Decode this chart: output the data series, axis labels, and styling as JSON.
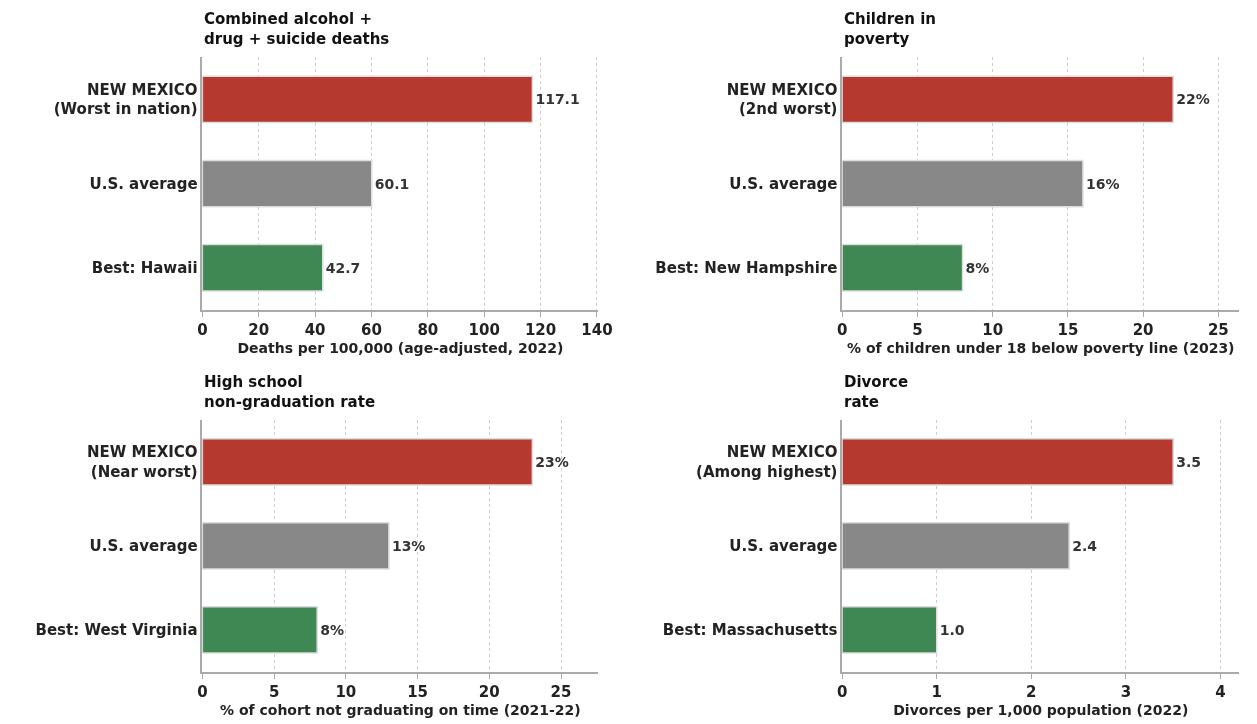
{
  "chart_data": [
    {
      "type": "bar",
      "orientation": "horizontal",
      "title": "Combined alcohol +\ndrug + suicide deaths",
      "xlabel": "Deaths per 100,000 (age-adjusted, 2022)",
      "categories": [
        "NEW MEXICO\n(Worst in nation)",
        "U.S. average",
        "Best: Hawaii"
      ],
      "values": [
        117.1,
        60.1,
        42.7
      ],
      "value_labels": [
        "117.1",
        "60.1",
        "42.7"
      ],
      "colors": [
        "#b5392f",
        "#888888",
        "#3f8753"
      ],
      "xlim": [
        0,
        140.5
      ],
      "xticks": [
        0,
        20,
        40,
        60,
        80,
        100,
        120,
        140
      ],
      "grid": "x"
    },
    {
      "type": "bar",
      "orientation": "horizontal",
      "title": "Children in\npoverty",
      "xlabel": "% of children under 18 below poverty line (2023)",
      "categories": [
        "NEW MEXICO\n(2nd worst)",
        "U.S. average",
        "Best: New Hampshire"
      ],
      "values": [
        22,
        16,
        8
      ],
      "value_labels": [
        "22%",
        "16%",
        "8%"
      ],
      "colors": [
        "#b5392f",
        "#888888",
        "#3f8753"
      ],
      "xlim": [
        0,
        26.4
      ],
      "xticks": [
        0,
        5,
        10,
        15,
        20,
        25
      ],
      "grid": "x"
    },
    {
      "type": "bar",
      "orientation": "horizontal",
      "title": "High school\nnon-graduation rate",
      "xlabel": "% of cohort not graduating on time (2021-22)",
      "categories": [
        "NEW MEXICO\n(Near worst)",
        "U.S. average",
        "Best: West Virginia"
      ],
      "values": [
        23,
        13,
        8
      ],
      "value_labels": [
        "23%",
        "13%",
        "8%"
      ],
      "colors": [
        "#b5392f",
        "#888888",
        "#3f8753"
      ],
      "xlim": [
        0,
        27.6
      ],
      "xticks": [
        0,
        5,
        10,
        15,
        20,
        25
      ],
      "grid": "x"
    },
    {
      "type": "bar",
      "orientation": "horizontal",
      "title": "Divorce\nrate",
      "xlabel": "Divorces per 1,000 population (2022)",
      "categories": [
        "NEW MEXICO\n(Among highest)",
        "U.S. average",
        "Best: Massachusetts"
      ],
      "values": [
        3.5,
        2.4,
        1.0
      ],
      "value_labels": [
        "3.5",
        "2.4",
        "1.0"
      ],
      "colors": [
        "#b5392f",
        "#888888",
        "#3f8753"
      ],
      "xlim": [
        0,
        4.2
      ],
      "xticks": [
        0,
        1,
        2,
        3,
        4
      ],
      "grid": "x"
    }
  ]
}
